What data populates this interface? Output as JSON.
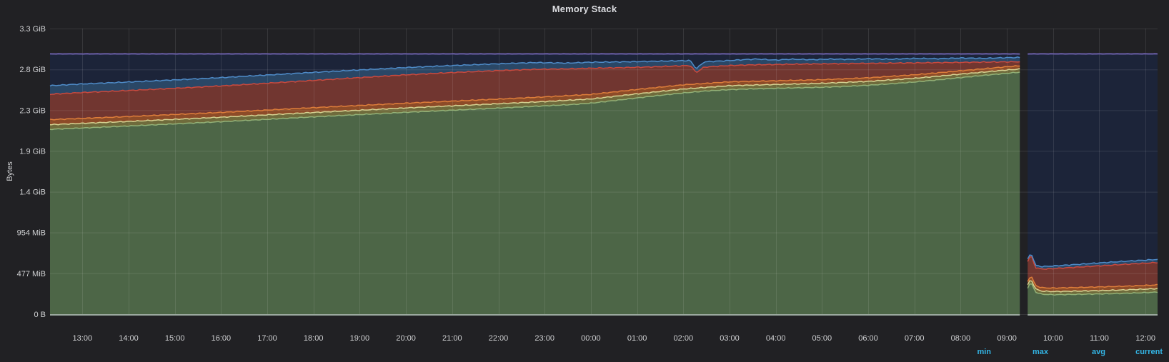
{
  "chart_data": {
    "type": "area",
    "stacked": true,
    "title": "Memory Stack",
    "ylabel": "Bytes",
    "ylim_gib": [
      0,
      3.26
    ],
    "y_ticks": [
      {
        "label": "0 B",
        "gib": 0
      },
      {
        "label": "477 MiB",
        "gib": 0.466
      },
      {
        "label": "954 MiB",
        "gib": 0.932
      },
      {
        "label": "1.4 GiB",
        "gib": 1.397
      },
      {
        "label": "1.9 GiB",
        "gib": 1.863
      },
      {
        "label": "2.3 GiB",
        "gib": 2.328
      },
      {
        "label": "2.8 GiB",
        "gib": 2.794
      },
      {
        "label": "3.3 GiB",
        "gib": 3.26
      }
    ],
    "x_ticks": [
      {
        "label": "13:00",
        "t": 1
      },
      {
        "label": "14:00",
        "t": 2
      },
      {
        "label": "15:00",
        "t": 3
      },
      {
        "label": "16:00",
        "t": 4
      },
      {
        "label": "17:00",
        "t": 5
      },
      {
        "label": "18:00",
        "t": 6
      },
      {
        "label": "19:00",
        "t": 7
      },
      {
        "label": "20:00",
        "t": 8
      },
      {
        "label": "21:00",
        "t": 9
      },
      {
        "label": "22:00",
        "t": 10
      },
      {
        "label": "23:00",
        "t": 11
      },
      {
        "label": "00:00",
        "t": 12
      },
      {
        "label": "01:00",
        "t": 13
      },
      {
        "label": "02:00",
        "t": 14
      },
      {
        "label": "03:00",
        "t": 15
      },
      {
        "label": "04:00",
        "t": 16
      },
      {
        "label": "05:00",
        "t": 17
      },
      {
        "label": "06:00",
        "t": 18
      },
      {
        "label": "07:00",
        "t": 19
      },
      {
        "label": "08:00",
        "t": 20
      },
      {
        "label": "09:00",
        "t": 21
      },
      {
        "label": "10:00",
        "t": 22
      },
      {
        "label": "11:00",
        "t": 23
      },
      {
        "label": "12:00",
        "t": 24
      }
    ],
    "x_range_hours": [
      0.3,
      24.26
    ],
    "gap_hours": [
      21.28,
      21.45
    ],
    "grid": true,
    "legend": {
      "columns": [
        "min",
        "max",
        "avg",
        "current"
      ],
      "header_color": "#33b5e5"
    },
    "colors": {
      "background": "#212124",
      "axis_text": "#d0d1d3",
      "grid": "rgba(255,255,255,0.10)",
      "baseline": "rgba(206,226,211,0.9)"
    },
    "series": [
      {
        "name": "green",
        "line_color": "#93b177",
        "fill_color": "#4d6647",
        "segments": [
          [
            [
              0.3,
              2.11
            ],
            [
              1,
              2.125
            ],
            [
              2,
              2.148
            ],
            [
              3,
              2.172
            ],
            [
              4,
              2.197
            ],
            [
              5,
              2.224
            ],
            [
              6,
              2.252
            ],
            [
              7,
              2.278
            ],
            [
              8,
              2.304
            ],
            [
              9,
              2.328
            ],
            [
              10,
              2.352
            ],
            [
              11,
              2.378
            ],
            [
              11.6,
              2.393
            ],
            [
              12,
              2.408
            ],
            [
              12.5,
              2.438
            ],
            [
              13,
              2.468
            ],
            [
              13.5,
              2.498
            ],
            [
              14,
              2.525
            ],
            [
              14.5,
              2.548
            ],
            [
              15,
              2.563
            ],
            [
              15.5,
              2.572
            ],
            [
              16,
              2.578
            ],
            [
              16.5,
              2.584
            ],
            [
              17,
              2.59
            ],
            [
              17.5,
              2.6
            ],
            [
              18,
              2.613
            ],
            [
              18.5,
              2.63
            ],
            [
              19,
              2.65
            ],
            [
              19.5,
              2.674
            ],
            [
              20,
              2.7
            ],
            [
              20.5,
              2.726
            ],
            [
              21,
              2.75
            ],
            [
              21.28,
              2.762
            ]
          ],
          [
            [
              21.45,
              0.3
            ],
            [
              21.52,
              0.365
            ],
            [
              21.62,
              0.252
            ],
            [
              21.75,
              0.228
            ],
            [
              22,
              0.222
            ],
            [
              22.5,
              0.226
            ],
            [
              23,
              0.231
            ],
            [
              23.5,
              0.237
            ],
            [
              24,
              0.246
            ],
            [
              24.26,
              0.252
            ]
          ]
        ]
      },
      {
        "name": "olive",
        "line_color": "#d6d292",
        "fill_color": "#6f6b3c",
        "segments": [
          [
            [
              0.3,
              2.163
            ],
            [
              2,
              2.2
            ],
            [
              4,
              2.248
            ],
            [
              6,
              2.302
            ],
            [
              8,
              2.354
            ],
            [
              10,
              2.402
            ],
            [
              11,
              2.427
            ],
            [
              12,
              2.456
            ],
            [
              13,
              2.515
            ],
            [
              14,
              2.57
            ],
            [
              15,
              2.608
            ],
            [
              16,
              2.622
            ],
            [
              17,
              2.635
            ],
            [
              18,
              2.657
            ],
            [
              19,
              2.692
            ],
            [
              20,
              2.74
            ],
            [
              21,
              2.787
            ],
            [
              21.28,
              2.798
            ]
          ],
          [
            [
              21.45,
              0.335
            ],
            [
              21.52,
              0.402
            ],
            [
              21.62,
              0.288
            ],
            [
              21.75,
              0.263
            ],
            [
              22,
              0.258
            ],
            [
              22.5,
              0.263
            ],
            [
              23,
              0.269
            ],
            [
              23.5,
              0.276
            ],
            [
              24,
              0.286
            ],
            [
              24.26,
              0.292
            ]
          ]
        ]
      },
      {
        "name": "orange",
        "line_color": "#de7e3b",
        "fill_color": "#8d4b28",
        "segments": [
          [
            [
              0.3,
              2.22
            ],
            [
              2,
              2.256
            ],
            [
              4,
              2.303
            ],
            [
              6,
              2.357
            ],
            [
              8,
              2.408
            ],
            [
              10,
              2.455
            ],
            [
              11,
              2.48
            ],
            [
              12,
              2.508
            ],
            [
              13,
              2.565
            ],
            [
              14,
              2.618
            ],
            [
              15,
              2.652
            ],
            [
              16,
              2.664
            ],
            [
              17,
              2.676
            ],
            [
              18,
              2.698
            ],
            [
              19,
              2.732
            ],
            [
              20,
              2.778
            ],
            [
              21,
              2.824
            ],
            [
              21.28,
              2.835
            ]
          ],
          [
            [
              21.45,
              0.375
            ],
            [
              21.52,
              0.443
            ],
            [
              21.62,
              0.327
            ],
            [
              21.75,
              0.302
            ],
            [
              22,
              0.298
            ],
            [
              22.5,
              0.304
            ],
            [
              23,
              0.311
            ],
            [
              23.5,
              0.318
            ],
            [
              24,
              0.328
            ],
            [
              24.26,
              0.334
            ]
          ]
        ]
      },
      {
        "name": "red",
        "line_color": "#c94a3f",
        "fill_color": "#713630",
        "segments": [
          [
            [
              0.3,
              2.51
            ],
            [
              1,
              2.53
            ],
            [
              2,
              2.553
            ],
            [
              3,
              2.578
            ],
            [
              4,
              2.605
            ],
            [
              5,
              2.636
            ],
            [
              6,
              2.668
            ],
            [
              7,
              2.7
            ],
            [
              8,
              2.732
            ],
            [
              9,
              2.758
            ],
            [
              10,
              2.78
            ],
            [
              10.8,
              2.795
            ],
            [
              11.5,
              2.8
            ],
            [
              12,
              2.807
            ],
            [
              12.7,
              2.814
            ],
            [
              13.3,
              2.822
            ],
            [
              14.15,
              2.838
            ],
            [
              14.28,
              2.758
            ],
            [
              14.45,
              2.82
            ],
            [
              15,
              2.838
            ],
            [
              15.5,
              2.846
            ],
            [
              16,
              2.85
            ],
            [
              16.5,
              2.854
            ],
            [
              17,
              2.857
            ],
            [
              17.5,
              2.86
            ],
            [
              18,
              2.863
            ],
            [
              19,
              2.868
            ],
            [
              20,
              2.874
            ],
            [
              20.6,
              2.878
            ],
            [
              21.28,
              2.881
            ]
          ],
          [
            [
              21.45,
              0.6
            ],
            [
              21.52,
              0.68
            ],
            [
              21.62,
              0.53
            ],
            [
              21.75,
              0.515
            ],
            [
              22,
              0.52
            ],
            [
              22.5,
              0.536
            ],
            [
              23,
              0.552
            ],
            [
              23.5,
              0.567
            ],
            [
              24,
              0.582
            ],
            [
              24.26,
              0.59
            ]
          ]
        ]
      },
      {
        "name": "blue",
        "line_color": "#4f8cc9",
        "fill_color": "#2a4766",
        "segments": [
          [
            [
              0.3,
              2.608
            ],
            [
              1,
              2.628
            ],
            [
              2,
              2.65
            ],
            [
              3,
              2.674
            ],
            [
              4,
              2.7
            ],
            [
              5,
              2.73
            ],
            [
              6,
              2.76
            ],
            [
              7,
              2.788
            ],
            [
              8,
              2.815
            ],
            [
              9,
              2.838
            ],
            [
              10,
              2.858
            ],
            [
              10.8,
              2.872
            ],
            [
              11.5,
              2.866
            ],
            [
              12,
              2.876
            ],
            [
              12.7,
              2.88
            ],
            [
              13.3,
              2.886
            ],
            [
              14.15,
              2.895
            ],
            [
              14.28,
              2.8
            ],
            [
              14.45,
              2.88
            ],
            [
              15,
              2.895
            ],
            [
              15.3,
              2.905
            ],
            [
              15.6,
              2.912
            ],
            [
              16,
              2.9
            ],
            [
              16.3,
              2.91
            ],
            [
              16.8,
              2.905
            ],
            [
              17.2,
              2.912
            ],
            [
              17.6,
              2.908
            ],
            [
              18,
              2.915
            ],
            [
              18.5,
              2.91
            ],
            [
              19,
              2.92
            ],
            [
              19.5,
              2.916
            ],
            [
              20,
              2.924
            ],
            [
              20.5,
              2.92
            ],
            [
              21,
              2.928
            ],
            [
              21.28,
              2.93
            ]
          ],
          [
            [
              21.45,
              0.625
            ],
            [
              21.52,
              0.705
            ],
            [
              21.62,
              0.557
            ],
            [
              21.75,
              0.543
            ],
            [
              22,
              0.55
            ],
            [
              22.5,
              0.567
            ],
            [
              23,
              0.585
            ],
            [
              23.5,
              0.602
            ],
            [
              24,
              0.617
            ],
            [
              24.26,
              0.625
            ]
          ]
        ]
      },
      {
        "name": "navy-total",
        "line_color": "#6a5fa8",
        "fill_color": "#1c2439",
        "segments": [
          [
            [
              0.3,
              2.971
            ],
            [
              21.28,
              2.971
            ]
          ],
          [
            [
              21.45,
              2.971
            ],
            [
              24.26,
              2.971
            ]
          ]
        ]
      }
    ]
  }
}
